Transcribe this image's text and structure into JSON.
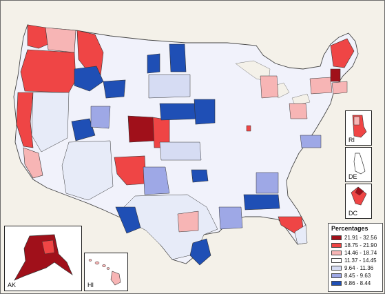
{
  "legend": {
    "title": "Percentages",
    "classes": [
      {
        "label": "21.91 - 32.56",
        "color": "#a0101a"
      },
      {
        "label": "18.75 - 21.90",
        "color": "#ef4545"
      },
      {
        "label": "14.46 - 18.74",
        "color": "#f7b5b5"
      },
      {
        "label": "11.37 - 14.45",
        "color": "#ffffff"
      },
      {
        "label": "9.64 - 11.36",
        "color": "#d6dcf3"
      },
      {
        "label": "8.45 - 9.63",
        "color": "#9ea8e6"
      },
      {
        "label": "6.86 - 8.44",
        "color": "#1f4fb5"
      }
    ]
  },
  "insets": {
    "rhode_island": "RI",
    "delaware": "DE",
    "district_of_columbia": "DC",
    "alaska": "AK",
    "hawaii": "HI"
  },
  "colors": {
    "background": "#f4f1e9",
    "border": "#555555"
  }
}
